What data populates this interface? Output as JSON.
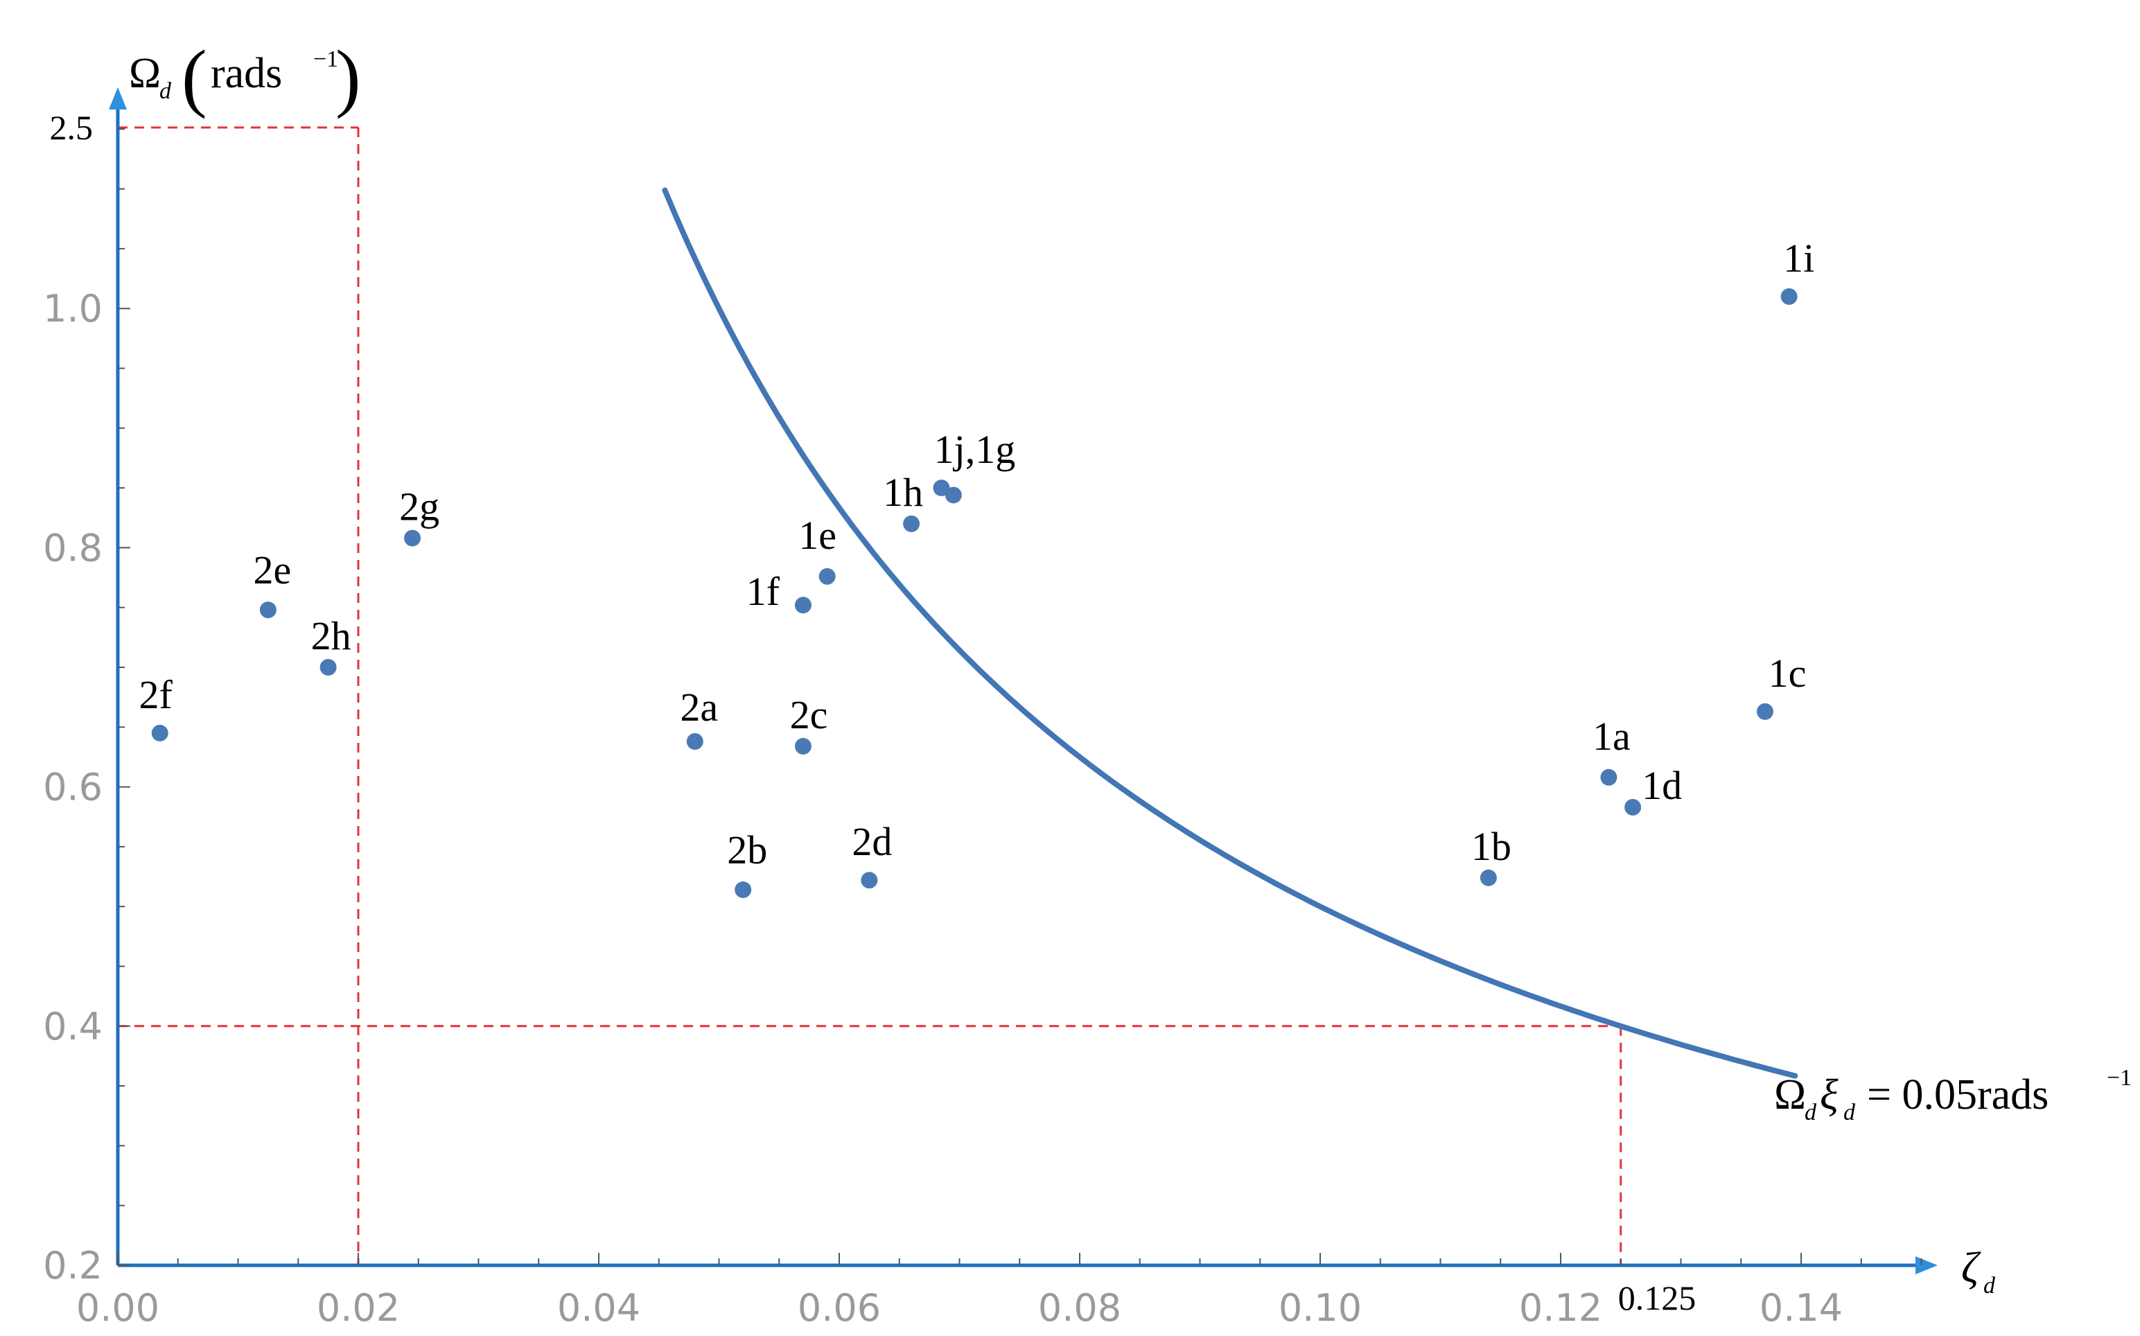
{
  "chart_data": {
    "type": "scatter",
    "x_axis": {
      "symbol": "ζ",
      "subscript": "d",
      "ticks": [
        "0.00",
        "0.02",
        "0.04",
        "0.06",
        "0.08",
        "0.10",
        "0.12",
        "0.14"
      ],
      "tick_values": [
        0.0,
        0.02,
        0.04,
        0.06,
        0.08,
        0.1,
        0.12,
        0.14
      ],
      "special_tick": "0.125",
      "special_tick_value": 0.125,
      "range": [
        0.0,
        0.15
      ]
    },
    "y_axis": {
      "symbol": "Ω",
      "subscript": "d",
      "unit_main": "rads",
      "unit_sup": "−1",
      "ticks": [
        "0.2",
        "0.4",
        "0.6",
        "0.8",
        "1.0"
      ],
      "tick_values": [
        0.2,
        0.4,
        0.6,
        0.8,
        1.0
      ],
      "special_tick": "2.5",
      "special_tick_value": 2.5,
      "broken_axis": true,
      "range": [
        0.2,
        1.15
      ]
    },
    "points": [
      {
        "label": "2f",
        "x": 0.0035,
        "y": 0.645
      },
      {
        "label": "2e",
        "x": 0.0125,
        "y": 0.748
      },
      {
        "label": "2h",
        "x": 0.0175,
        "y": 0.7
      },
      {
        "label": "2g",
        "x": 0.0245,
        "y": 0.808
      },
      {
        "label": "2a",
        "x": 0.048,
        "y": 0.638
      },
      {
        "label": "2b",
        "x": 0.052,
        "y": 0.514
      },
      {
        "label": "2c",
        "x": 0.057,
        "y": 0.634
      },
      {
        "label": "2d",
        "x": 0.0625,
        "y": 0.522
      },
      {
        "label": "1f",
        "x": 0.057,
        "y": 0.752
      },
      {
        "label": "1e",
        "x": 0.059,
        "y": 0.776
      },
      {
        "label": "1h",
        "x": 0.066,
        "y": 0.82
      },
      {
        "label": "1j,1g",
        "x": 0.0685,
        "y": 0.85
      },
      {
        "label": "",
        "x": 0.0695,
        "y": 0.844
      },
      {
        "label": "1b",
        "x": 0.114,
        "y": 0.524
      },
      {
        "label": "1a",
        "x": 0.124,
        "y": 0.608
      },
      {
        "label": "1d",
        "x": 0.126,
        "y": 0.583
      },
      {
        "label": "1c",
        "x": 0.137,
        "y": 0.663
      },
      {
        "label": "1i",
        "x": 0.139,
        "y": 1.01
      }
    ],
    "curve": {
      "equation_main": "Ω",
      "equation_sub1": "d",
      "equation_mid": "ξ",
      "equation_sub2": "d",
      "equation_rhs": "= 0.05rads",
      "equation_sup": "−1",
      "constant": 0.05,
      "x_range": [
        0.0455,
        0.1395
      ]
    },
    "reference_lines": [
      {
        "type": "vertical",
        "x": 0.02,
        "color": "#e8313a",
        "style": "dashed"
      },
      {
        "type": "horizontal",
        "y": 0.4,
        "color": "#e8313a",
        "style": "dashed"
      },
      {
        "type": "vertical",
        "x": 0.125,
        "color": "#e8313a",
        "style": "dashed"
      },
      {
        "type": "horizontal",
        "y": 2.5,
        "color": "#e8313a",
        "style": "dashed"
      }
    ],
    "colors": {
      "axis": "#1f6fbf",
      "axis_arrow": "#2e8fde",
      "points": "#4a7ab5",
      "curve": "#4276b4",
      "reference": "#e8313a",
      "tick_label": "#9a9a9a"
    }
  }
}
